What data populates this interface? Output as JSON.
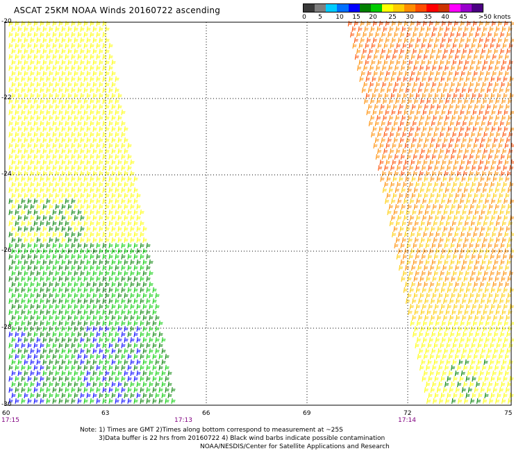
{
  "title": "ASCAT 25KM NOAA Winds 20160722 ascending",
  "legend": {
    "colors": [
      "#3a3a3a",
      "#7f7f7f",
      "#00ccff",
      "#0070ff",
      "#0000ff",
      "#008000",
      "#00cc00",
      "#ffff00",
      "#ffcc00",
      "#ff8c00",
      "#ff4d00",
      "#ff0000",
      "#cc3300",
      "#ff00ff",
      "#9900cc",
      "#4b0082"
    ],
    "labels": [
      "0",
      "5",
      "10",
      "15",
      "20",
      "25",
      "30",
      "35",
      "40",
      "45",
      ">50 knots"
    ]
  },
  "lat_labels": [
    "-20",
    "-22",
    "-24",
    "-26",
    "-28",
    "-30"
  ],
  "lon_labels": [
    "60",
    "63",
    "66",
    "69",
    "72",
    "75"
  ],
  "times": [
    "17:15",
    "17:13",
    "17:14"
  ],
  "notes": [
    "Note: 1) Times are GMT 2)Times along bottom correspond to measurement at ~25S",
    "3)Data buffer is 22 hrs from 20160722 4) Black wind barbs indicate possible contamination",
    "NOAA/NESDIS/Center for Satellite Applications and Research"
  ]
}
